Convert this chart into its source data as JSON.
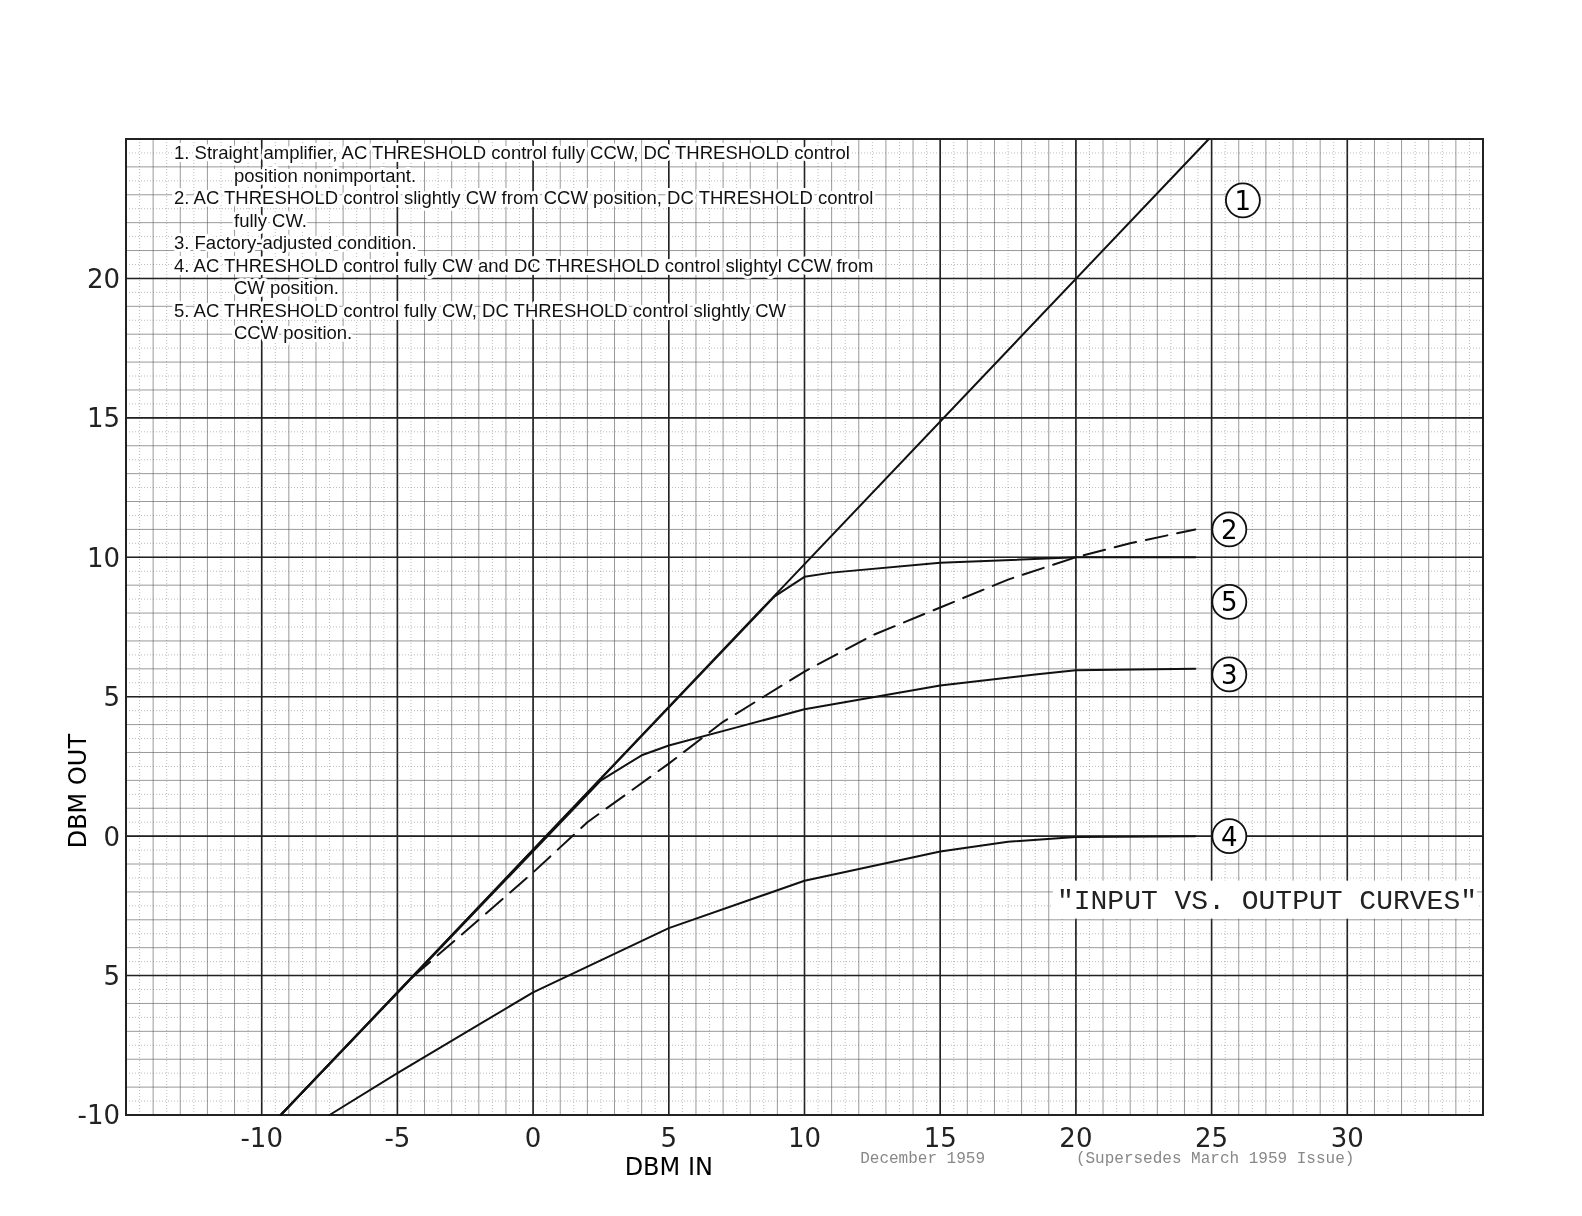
{
  "chart_data": {
    "type": "line",
    "title": "\"INPUT   VS. OUTPUT CURVES\"",
    "xlabel": "DBM IN",
    "ylabel": "DBM OUT",
    "xlim": [
      -15,
      35
    ],
    "ylim": [
      -10,
      25
    ],
    "xticks": [
      -10,
      -5,
      0,
      5,
      10,
      15,
      20,
      25,
      30
    ],
    "yticks": [
      -10,
      {
        "value": -5,
        "label": "5"
      },
      0,
      5,
      10,
      15,
      20
    ],
    "grid": true,
    "legend": false,
    "marker": "none",
    "annotations": [
      "1. Straight amplifier, AC THRESHOLD control fully CCW, DC THRESHOLD control\nposition nonimportant.",
      "2. AC THRESHOLD control slightly CW from CCW position, DC THRESHOLD control\nfully CW.",
      "3. Factory-adjusted condition.",
      "4. AC THRESHOLD control fully CW and DC THRESHOLD control slightyl CCW from\nCW position.",
      "5. AC THRESHOLD control fully CW, DC THRESHOLD control slightly CW\nCCW position.",
      "December 1959",
      "(Supersedes March 1959 Issue)"
    ],
    "series": [
      {
        "name": "1",
        "color": "#111111",
        "line_style": "solid",
        "x": [
          -9.3,
          24.9
        ],
        "values": [
          -10,
          25
        ]
      },
      {
        "name": "2",
        "color": "#111111",
        "line_style": "dashed",
        "x": [
          -9.3,
          -4.5,
          -2,
          0,
          2,
          5,
          7,
          10,
          12.5,
          15,
          17.5,
          20,
          22,
          24.4
        ],
        "values": [
          -10,
          -5.1,
          -3,
          -1.3,
          0.5,
          2.6,
          4.1,
          5.9,
          7.2,
          8.2,
          9.2,
          10,
          10.5,
          11
        ]
      },
      {
        "name": "3",
        "color": "#111111",
        "line_style": "solid",
        "x": [
          -9.3,
          2.5,
          4,
          5,
          7.5,
          10,
          15,
          18.5,
          20,
          24.4
        ],
        "values": [
          -10,
          2,
          2.9,
          3.25,
          3.9,
          4.55,
          5.4,
          5.8,
          5.95,
          6
        ]
      },
      {
        "name": "4",
        "color": "#111111",
        "line_style": "solid",
        "x": [
          -7.5,
          -5,
          0,
          5,
          10,
          15,
          17.5,
          20,
          24.4
        ],
        "values": [
          -10,
          -8.5,
          -5.6,
          -3.3,
          -1.6,
          -0.55,
          -0.2,
          -0.03,
          0
        ]
      },
      {
        "name": "5",
        "color": "#111111",
        "line_style": "solid",
        "x": [
          -9.3,
          8.9,
          10,
          11,
          15,
          20,
          24.4
        ],
        "values": [
          -10,
          8.6,
          9.3,
          9.45,
          9.8,
          10,
          10
        ]
      }
    ]
  }
}
